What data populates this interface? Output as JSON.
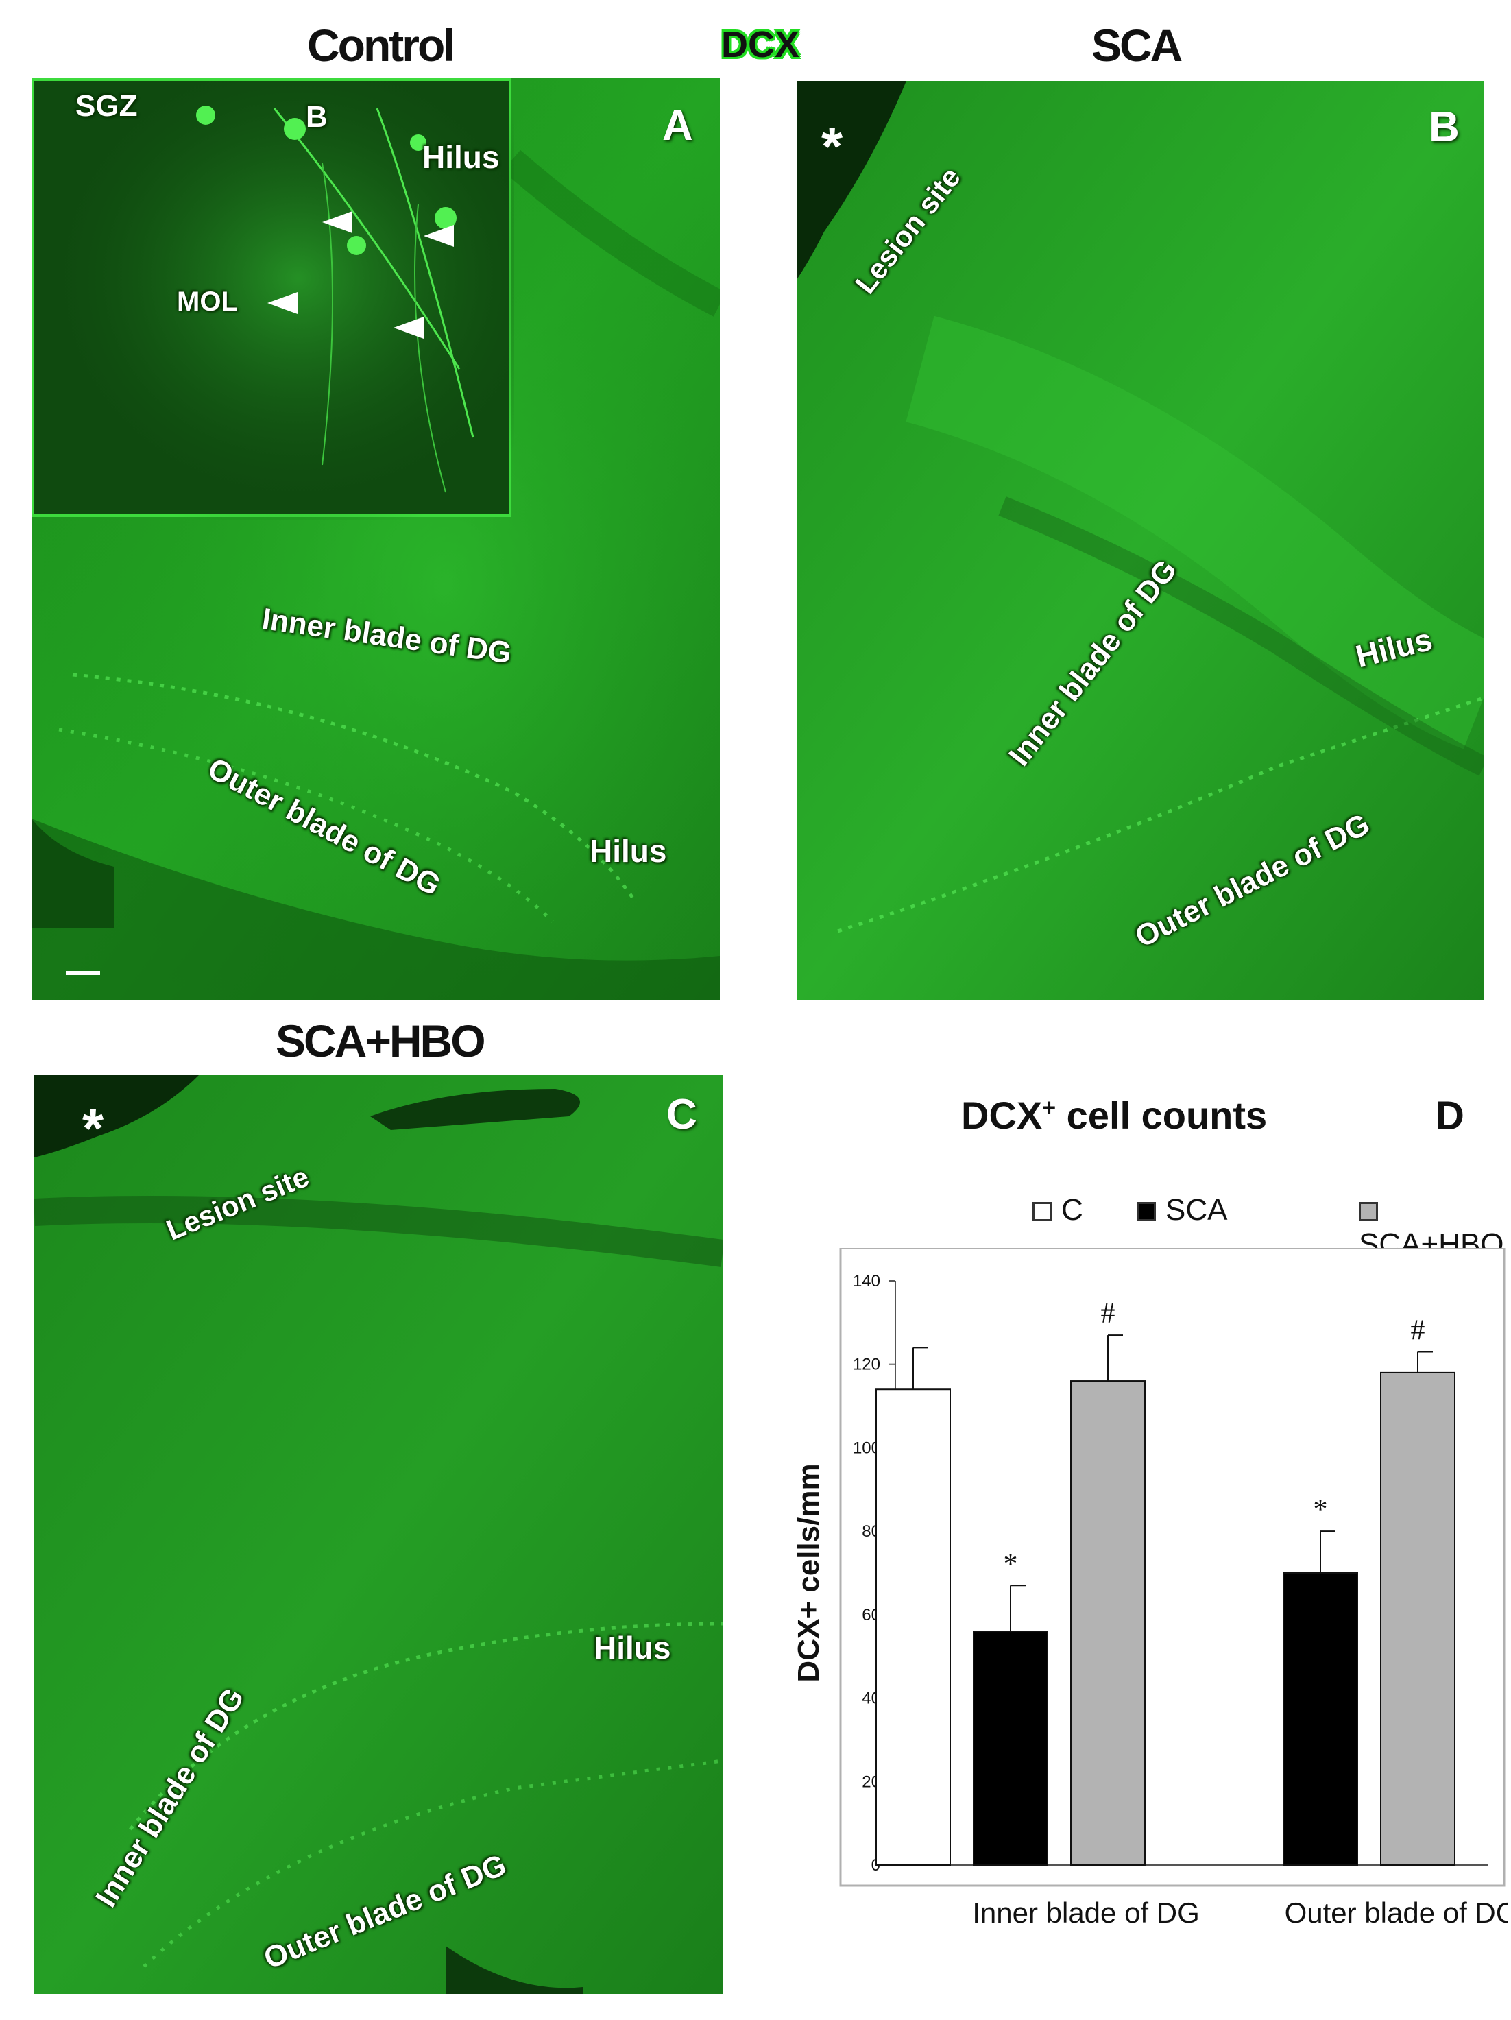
{
  "headings": {
    "control": "Control",
    "stain": "DCX",
    "sca": "SCA",
    "sca_hbo": "SCA+HBO"
  },
  "panel_a": {
    "letter": "A",
    "inset_labels": {
      "sgz": "SGZ",
      "b": "B",
      "hilus": "Hilus",
      "mol": "MOL"
    },
    "labels": {
      "inner": "Inner blade of DG",
      "outer": "Outer blade of DG",
      "hilus": "Hilus"
    }
  },
  "panel_b": {
    "letter": "B",
    "star": "*",
    "labels": {
      "lesion": "Lesion site",
      "inner": "Inner blade of DG",
      "hilus": "Hilus",
      "outer": "Outer blade of DG"
    }
  },
  "panel_c": {
    "letter": "C",
    "star": "*",
    "labels": {
      "lesion": "Lesion site",
      "inner": "Inner blade of DG",
      "hilus": "Hilus",
      "outer": "Outer blade of DG"
    }
  },
  "panel_d": {
    "letter": "D",
    "title": "DCX",
    "title_sup": "+",
    "title_rest": " cell counts"
  },
  "chart_data": {
    "type": "bar",
    "categories": [
      "Inner blade of DG",
      "Outer blade of DG"
    ],
    "series": [
      {
        "name": "C",
        "color": "#ffffff",
        "values": [
          114,
          null
        ],
        "errors": [
          10,
          null
        ],
        "marks": [
          "",
          ""
        ]
      },
      {
        "name": "SCA",
        "color": "#000000",
        "values": [
          56,
          70
        ],
        "errors": [
          11,
          10
        ],
        "marks": [
          "*",
          "*"
        ]
      },
      {
        "name": "SCA+HBO",
        "color": "#b3b3b3",
        "values": [
          116,
          118
        ],
        "errors": [
          11,
          5
        ],
        "marks": [
          "#",
          "#"
        ]
      }
    ],
    "ylabel": "DCX+ cells/mm",
    "ylim": [
      0,
      140
    ],
    "yticks": [
      0,
      20,
      40,
      60,
      80,
      100,
      120,
      140
    ],
    "grid": false,
    "legend_position": "top"
  }
}
